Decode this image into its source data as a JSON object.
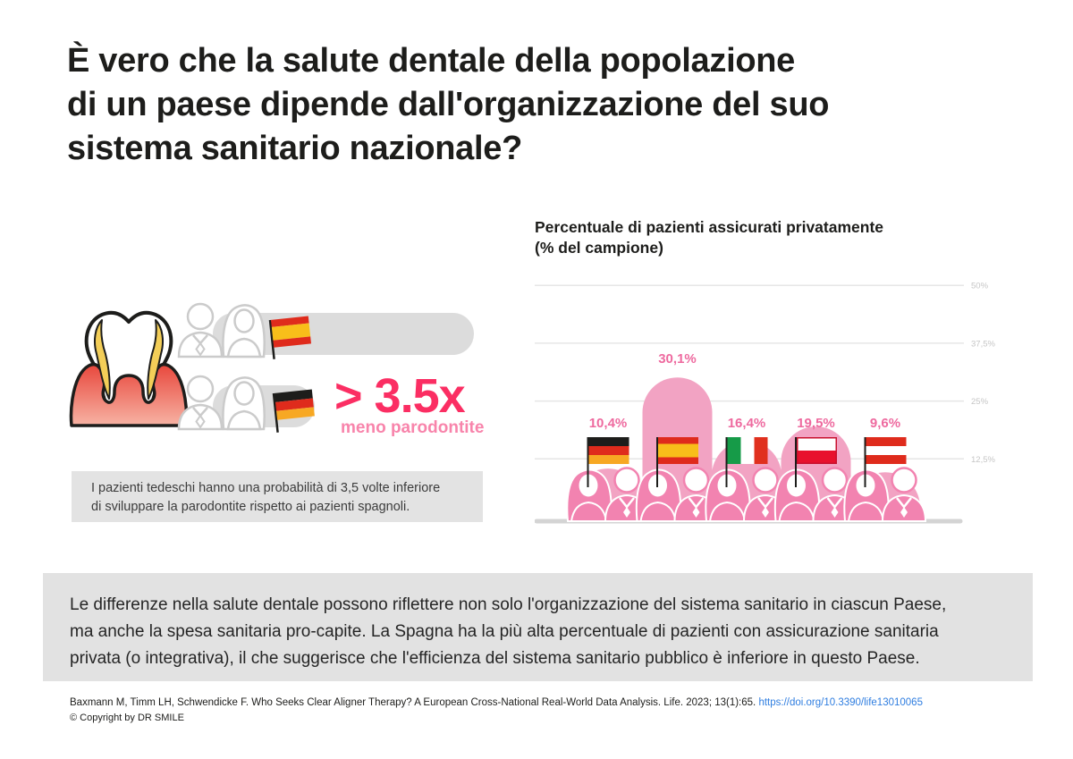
{
  "page": {
    "title_lines": [
      "È vero che la salute dentale della popolazione",
      "di un paese dipende dall'organizzazione del suo",
      "sistema sanitario nazionale?"
    ]
  },
  "comparison": {
    "multiplier": "> 3.5x",
    "multiplier_caption": "meno parodontite",
    "rows": [
      {
        "country": "Spagna",
        "flag": "es"
      },
      {
        "country": "Germania",
        "flag": "de"
      }
    ],
    "caption_lines": [
      "I pazienti tedeschi hanno una probabilità di 3,5 volte inferiore",
      "di sviluppare la parodontite rispetto ai pazienti spagnoli."
    ]
  },
  "chart_data": {
    "type": "bar",
    "title": "Percentuale di pazienti assicurati privatamente (% del campione)",
    "title_lines": [
      "Percentuale di pazienti assicurati privatamente",
      "(% del campione)"
    ],
    "categories": [
      "Germania",
      "Spagna",
      "Italia",
      "Polonia",
      "Austria"
    ],
    "flag_codes": [
      "de",
      "es",
      "it",
      "pl",
      "at"
    ],
    "values": [
      10.4,
      30.1,
      16.4,
      19.5,
      9.6
    ],
    "value_labels": [
      "10,4%",
      "30,1%",
      "16,4%",
      "19,5%",
      "9,6%"
    ],
    "ylim": [
      0,
      50
    ],
    "yticks": [
      50,
      37.5,
      25,
      12.5
    ],
    "ytick_labels": [
      "50%",
      "37,5%",
      "25%",
      "12,5%"
    ],
    "grid": true,
    "legend": false,
    "bar_color": "#F2A3C3",
    "figure_color": "#F283B0",
    "label_color": "#EE6A9F"
  },
  "summary": {
    "lines": [
      "Le differenze nella salute dentale possono riflettere non solo l'organizzazione del sistema sanitario in ciascun Paese,",
      "ma anche la spesa sanitaria pro-capite. La Spagna ha la più alta percentuale di pazienti con assicurazione sanitaria",
      "privata (o integrativa), il che suggerisce che l'efficienza del sistema sanitario pubblico è inferiore in questo Paese."
    ]
  },
  "footer": {
    "citation": "Baxmann M, Timm LH, Schwendicke F. Who Seeks Clear Aligner Therapy? A European Cross-National Real-World Data Analysis. Life. 2023; 13(1):65.",
    "link": "https://doi.org/10.3390/life13010065",
    "copyright": "© Copyright by DR SMILE"
  },
  "colors": {
    "accent_pink": "#FB2E63",
    "light_pink": "#F884AB",
    "box_gray": "#E3E3E3",
    "link_blue": "#2E7DE0"
  }
}
